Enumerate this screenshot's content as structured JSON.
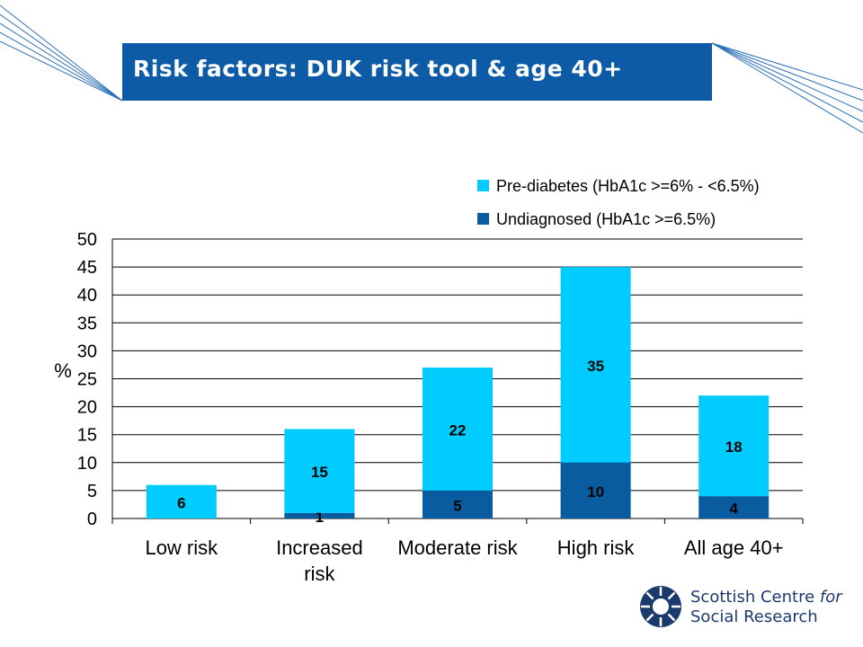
{
  "slide": {
    "title": "Risk factors: DUK risk tool & age 40+",
    "logo_line1_a": "Scottish Centre ",
    "logo_line1_b": "for",
    "logo_line2": "Social Research"
  },
  "colors": {
    "title_bg": "#0d5aa7",
    "pre_diabetes": "#00ccff",
    "undiagnosed": "#0a5ca0",
    "logo": "#1a3a6e"
  },
  "chart_data": {
    "type": "bar",
    "stacked": true,
    "title": "",
    "xlabel": "",
    "ylabel": "%",
    "ylim": [
      0,
      50
    ],
    "yticks": [
      0,
      5,
      10,
      15,
      20,
      25,
      30,
      35,
      40,
      45,
      50
    ],
    "grid": true,
    "legend_position": "top-right",
    "categories": [
      [
        "Low risk"
      ],
      [
        "Increased",
        "risk"
      ],
      [
        "Moderate risk"
      ],
      [
        "High risk"
      ],
      [
        "All age 40+"
      ]
    ],
    "series": [
      {
        "name": "Pre-diabetes (HbA1c >=6% - <6.5%)",
        "color": "#00ccff",
        "values": [
          6,
          15,
          22,
          35,
          18
        ],
        "labels": [
          "6",
          "15",
          "22",
          "35",
          "18"
        ]
      },
      {
        "name": "Undiagnosed (HbA1c >=6.5%)",
        "color": "#0a5ca0",
        "values": [
          0,
          1,
          5,
          10,
          4
        ],
        "labels": [
          "",
          "1",
          "5",
          "10",
          "4"
        ]
      }
    ]
  }
}
